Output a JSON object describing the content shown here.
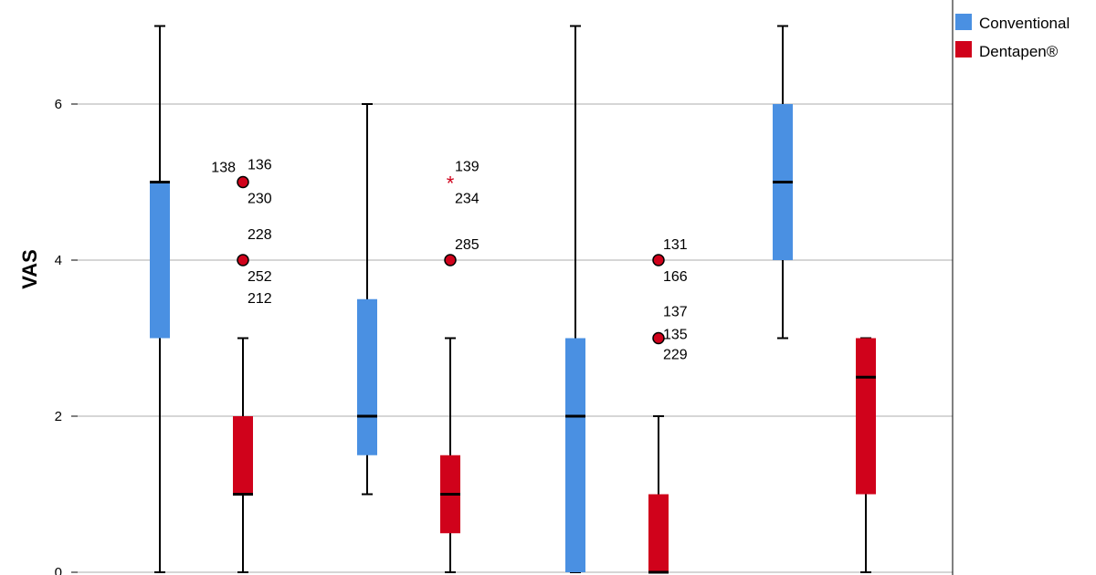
{
  "chart_data": {
    "type": "box",
    "ylabel": "VAS",
    "ylim": [
      0,
      7.5
    ],
    "yticks": [
      "0",
      "2",
      "4",
      "6"
    ],
    "grid": true,
    "legend": {
      "placement": "top-right",
      "entries": [
        {
          "name": "Conventional",
          "color": "#4A90E2"
        },
        {
          "name": "Dentapen®",
          "color": "#D0021B"
        }
      ]
    },
    "groups": [
      {
        "series": "Conventional",
        "whisker_low": 0,
        "q1": 3,
        "median": 5,
        "q3": 5,
        "whisker_high": 7,
        "outliers": []
      },
      {
        "series": "Dentapen®",
        "whisker_low": 0,
        "q1": 1,
        "median": 1,
        "q3": 2,
        "whisker_high": 3,
        "outliers": [
          {
            "y": 5,
            "marker": "circle",
            "labels": [
              "138",
              "136",
              "230"
            ]
          },
          {
            "y": 4,
            "marker": "circle",
            "labels": [
              "228",
              "252",
              "212"
            ]
          }
        ]
      },
      {
        "series": "Conventional",
        "whisker_low": 1,
        "q1": 1.5,
        "median": 2,
        "q3": 3.5,
        "whisker_high": 6,
        "outliers": []
      },
      {
        "series": "Dentapen®",
        "whisker_low": 0,
        "q1": 0.5,
        "median": 1,
        "q3": 1.5,
        "whisker_high": 3,
        "outliers": [
          {
            "y": 5,
            "marker": "star",
            "labels": [
              "139",
              "234"
            ]
          },
          {
            "y": 4,
            "marker": "circle",
            "labels": [
              "285"
            ]
          }
        ]
      },
      {
        "series": "Conventional",
        "whisker_low": 0,
        "q1": 0,
        "median": 2,
        "q3": 3,
        "whisker_high": 7,
        "outliers": []
      },
      {
        "series": "Dentapen®",
        "whisker_low": 0,
        "q1": 0,
        "median": 0,
        "q3": 1,
        "whisker_high": 2,
        "outliers": [
          {
            "y": 4,
            "marker": "circle",
            "labels": [
              "131",
              "166"
            ]
          },
          {
            "y": 3,
            "marker": "circle",
            "labels": [
              "137",
              "135",
              "229"
            ]
          }
        ]
      },
      {
        "series": "Conventional",
        "whisker_low": 3,
        "q1": 4,
        "median": 5,
        "q3": 6,
        "whisker_high": 7,
        "outliers": []
      },
      {
        "series": "Dentapen®",
        "whisker_low": 0,
        "q1": 1,
        "median": 2.5,
        "q3": 3,
        "whisker_high": 3,
        "outliers": []
      }
    ]
  }
}
